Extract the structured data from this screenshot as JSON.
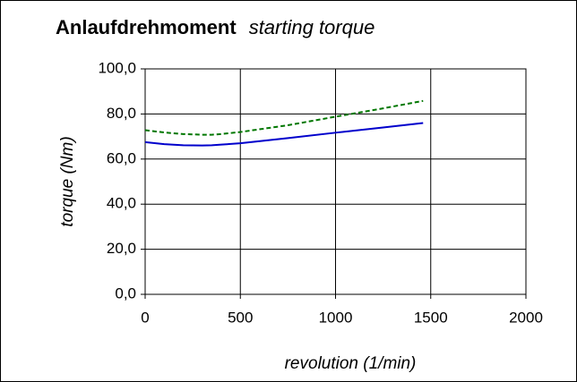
{
  "chart_data": {
    "type": "line",
    "title": "Anlaufdrehmoment",
    "subtitle": "starting torque",
    "x_label": "revolution (1/min)",
    "y_label": "torque (Nm)",
    "x": [
      0,
      100,
      200,
      300,
      350,
      400,
      500,
      750,
      1000,
      1250,
      1460
    ],
    "series": [
      {
        "color": "#0000cc",
        "dash": false,
        "values": [
          67.5,
          66.6,
          66.1,
          66.0,
          66.1,
          66.4,
          67.0,
          69.3,
          71.7,
          74.0,
          76.0
        ]
      },
      {
        "color": "#007700",
        "dash": true,
        "values": [
          72.8,
          71.8,
          71.1,
          70.8,
          70.8,
          71.1,
          72.0,
          75.0,
          78.8,
          82.5,
          85.8
        ]
      }
    ],
    "xlim": [
      0,
      2000
    ],
    "xticks": [
      0,
      500,
      1000,
      1500,
      2000
    ],
    "ylim": [
      0,
      100
    ],
    "yticks": [
      {
        "value": 0,
        "label": "0,0"
      },
      {
        "value": 20,
        "label": "20,0"
      },
      {
        "value": 40,
        "label": "40,0"
      },
      {
        "value": 60,
        "label": "60,0"
      },
      {
        "value": 80,
        "label": "80,0"
      },
      {
        "value": 100,
        "label": "100,0"
      }
    ],
    "grid": true
  }
}
